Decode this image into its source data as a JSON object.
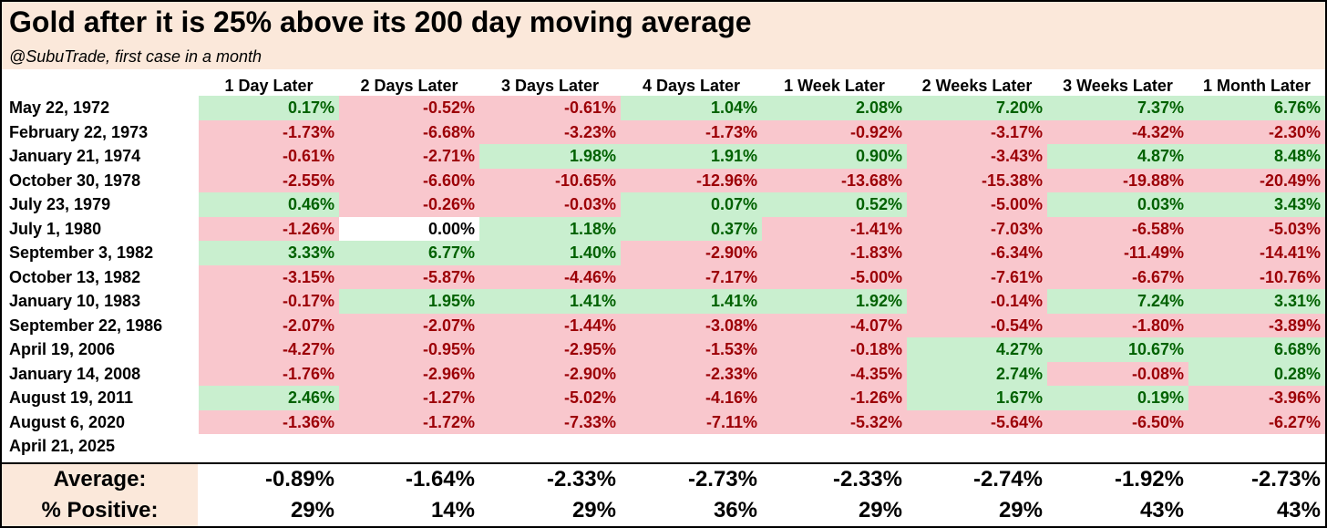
{
  "title": "Gold after it is 25% above its 200 day moving average",
  "subtitle": "@SubuTrade, first case in a month",
  "colors": {
    "header_band": "#fbe8da",
    "positive_bg": "#c9efcf",
    "positive_text": "#006100",
    "negative_bg": "#f9c7cd",
    "negative_text": "#9c0006",
    "zero_bg": "#ffffff",
    "zero_text": "#000000"
  },
  "chart_data": {
    "type": "table",
    "columns": [
      "1 Day Later",
      "2 Days Later",
      "3 Days Later",
      "4 Days Later",
      "1 Week Later",
      "2 Weeks Later",
      "3 Weeks Later",
      "1 Month Later"
    ],
    "rows": [
      {
        "label": "May 22, 1972",
        "values": [
          "0.17%",
          "-0.52%",
          "-0.61%",
          "1.04%",
          "2.08%",
          "7.20%",
          "7.37%",
          "6.76%"
        ]
      },
      {
        "label": "February 22, 1973",
        "values": [
          "-1.73%",
          "-6.68%",
          "-3.23%",
          "-1.73%",
          "-0.92%",
          "-3.17%",
          "-4.32%",
          "-2.30%"
        ]
      },
      {
        "label": "January 21, 1974",
        "values": [
          "-0.61%",
          "-2.71%",
          "1.98%",
          "1.91%",
          "0.90%",
          "-3.43%",
          "4.87%",
          "8.48%"
        ]
      },
      {
        "label": "October 30, 1978",
        "values": [
          "-2.55%",
          "-6.60%",
          "-10.65%",
          "-12.96%",
          "-13.68%",
          "-15.38%",
          "-19.88%",
          "-20.49%"
        ]
      },
      {
        "label": "July 23, 1979",
        "values": [
          "0.46%",
          "-0.26%",
          "-0.03%",
          "0.07%",
          "0.52%",
          "-5.00%",
          "0.03%",
          "3.43%"
        ]
      },
      {
        "label": "July 1, 1980",
        "values": [
          "-1.26%",
          "0.00%",
          "1.18%",
          "0.37%",
          "-1.41%",
          "-7.03%",
          "-6.58%",
          "-5.03%"
        ]
      },
      {
        "label": "September 3, 1982",
        "values": [
          "3.33%",
          "6.77%",
          "1.40%",
          "-2.90%",
          "-1.83%",
          "-6.34%",
          "-11.49%",
          "-14.41%"
        ]
      },
      {
        "label": "October 13, 1982",
        "values": [
          "-3.15%",
          "-5.87%",
          "-4.46%",
          "-7.17%",
          "-5.00%",
          "-7.61%",
          "-6.67%",
          "-10.76%"
        ]
      },
      {
        "label": "January 10, 1983",
        "values": [
          "-0.17%",
          "1.95%",
          "1.41%",
          "1.41%",
          "1.92%",
          "-0.14%",
          "7.24%",
          "3.31%"
        ]
      },
      {
        "label": "September 22, 1986",
        "values": [
          "-2.07%",
          "-2.07%",
          "-1.44%",
          "-3.08%",
          "-4.07%",
          "-0.54%",
          "-1.80%",
          "-3.89%"
        ]
      },
      {
        "label": "April 19, 2006",
        "values": [
          "-4.27%",
          "-0.95%",
          "-2.95%",
          "-1.53%",
          "-0.18%",
          "4.27%",
          "10.67%",
          "6.68%"
        ]
      },
      {
        "label": "January 14, 2008",
        "values": [
          "-1.76%",
          "-2.96%",
          "-2.90%",
          "-2.33%",
          "-4.35%",
          "2.74%",
          "-0.08%",
          "0.28%"
        ]
      },
      {
        "label": "August 19, 2011",
        "values": [
          "2.46%",
          "-1.27%",
          "-5.02%",
          "-4.16%",
          "-1.26%",
          "1.67%",
          "0.19%",
          "-3.96%"
        ]
      },
      {
        "label": "August 6, 2020",
        "values": [
          "-1.36%",
          "-1.72%",
          "-7.33%",
          "-7.11%",
          "-5.32%",
          "-5.64%",
          "-6.50%",
          "-6.27%"
        ]
      },
      {
        "label": "April 21, 2025",
        "values": [
          "",
          "",
          "",
          "",
          "",
          "",
          "",
          ""
        ]
      }
    ],
    "summary": [
      {
        "label": "Average:",
        "values": [
          "-0.89%",
          "-1.64%",
          "-2.33%",
          "-2.73%",
          "-2.33%",
          "-2.74%",
          "-1.92%",
          "-2.73%"
        ]
      },
      {
        "label": "% Positive:",
        "values": [
          "29%",
          "14%",
          "29%",
          "36%",
          "29%",
          "29%",
          "43%",
          "43%"
        ]
      }
    ]
  }
}
